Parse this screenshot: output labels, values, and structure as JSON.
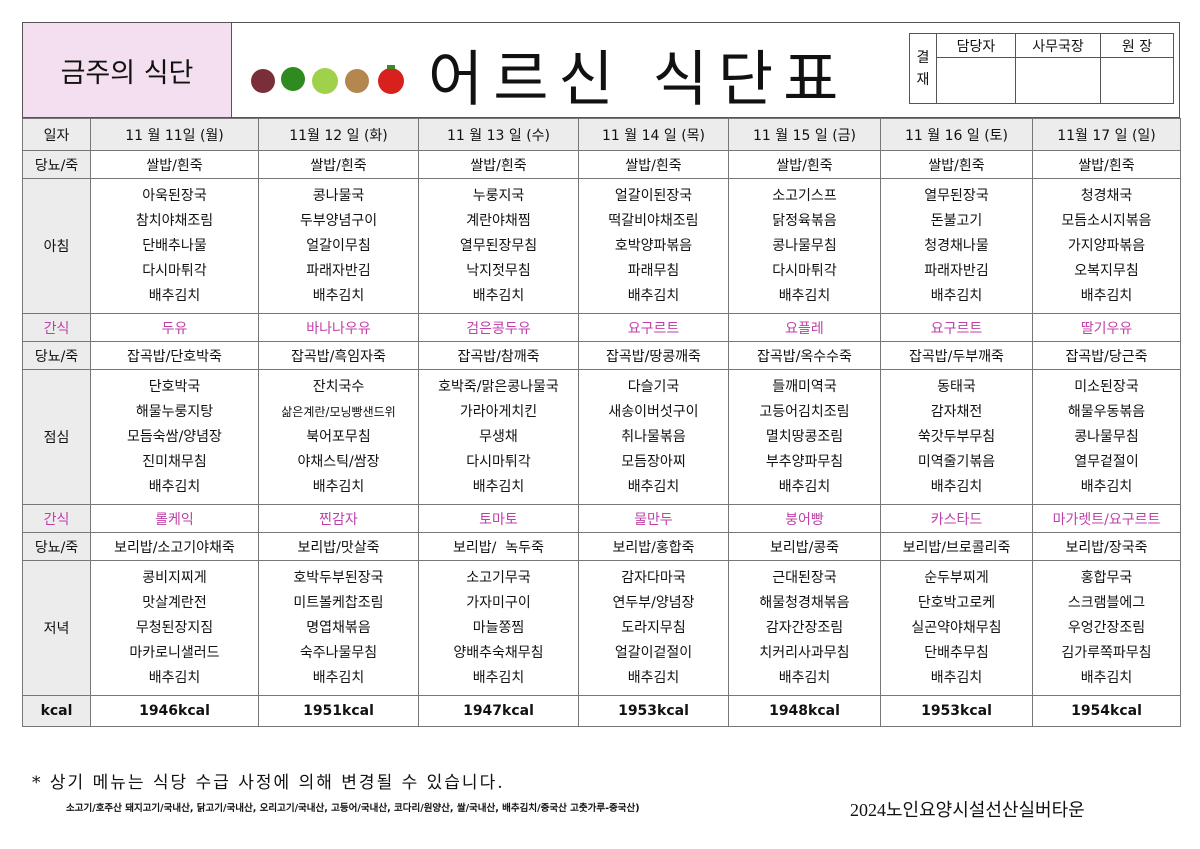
{
  "header": {
    "left_title": "금주의 식단",
    "title": "어르신 식단표",
    "approval": {
      "label_lines": [
        "결",
        "재"
      ],
      "roles": [
        "담당자",
        "사무국장",
        "원 장"
      ]
    }
  },
  "table": {
    "corner": "일자",
    "columns": [
      "11 월 11일 (월)",
      "11월 12 일 (화)",
      "11 월 13 일 (수)",
      "11 월 14 일 (목)",
      "11 월 15 일 (금)",
      "11 월 16 일 (토)",
      "11월 17 일 (일)"
    ],
    "rows": [
      {
        "label": "당뇨/죽",
        "cells": [
          "쌀밥/흰죽",
          "쌀밥/흰죽",
          "쌀밥/흰죽",
          "쌀밥/흰죽",
          "쌀밥/흰죽",
          "쌀밥/흰죽",
          "쌀밥/흰죽"
        ]
      },
      {
        "label": "아침",
        "cells": [
          [
            "아욱된장국",
            "참치야채조림",
            "단배추나물",
            "다시마튀각",
            "배추김치"
          ],
          [
            "콩나물국",
            "두부양념구이",
            "얼갈이무침",
            "파래자반김",
            "배추김치"
          ],
          [
            "누룽지국",
            "계란야채찜",
            "열무된장무침",
            "낙지젓무침",
            "배추김치"
          ],
          [
            "얼갈이된장국",
            "떡갈비야채조림",
            "호박양파볶음",
            "파래무침",
            "배추김치"
          ],
          [
            "소고기스프",
            "닭정육볶음",
            "콩나물무침",
            "다시마튀각",
            "배추김치"
          ],
          [
            "열무된장국",
            "돈불고기",
            "청경채나물",
            "파래자반김",
            "배추김치"
          ],
          [
            "청경채국",
            "모듬소시지볶음",
            "가지양파볶음",
            "오복지무침",
            "배추김치"
          ]
        ]
      },
      {
        "label": "간식",
        "cells": [
          "두유",
          "바나나우유",
          "검은콩두유",
          "요구르트",
          "요플레",
          "요구르트",
          "딸기우유"
        ]
      },
      {
        "label": "당뇨/죽",
        "cells": [
          "잡곡밥/단호박죽",
          "잡곡밥/흑임자죽",
          "잡곡밥/참깨죽",
          "잡곡밥/땅콩깨죽",
          "잡곡밥/옥수수죽",
          "잡곡밥/두부깨죽",
          "잡곡밥/당근죽"
        ]
      },
      {
        "label": "점심",
        "cells": [
          [
            "단호박국",
            "해물누룽지탕",
            "모듬숙쌈/양념장",
            "진미채무침",
            "배추김치"
          ],
          [
            "잔치국수",
            "삶은계란/모닝빵샌드위",
            "북어포무침",
            "야채스틱/쌈장",
            "배추김치"
          ],
          [
            "호박죽/맑은콩나물국",
            "가라아게치킨",
            "무생채",
            "다시마튀각",
            "배추김치"
          ],
          [
            "다슬기국",
            "새송이버섯구이",
            "취나물볶음",
            "모듬장아찌",
            "배추김치"
          ],
          [
            "들깨미역국",
            "고등어김치조림",
            "멸치땅콩조림",
            "부추양파무침",
            "배추김치"
          ],
          [
            "동태국",
            "감자채전",
            "쑥갓두부무침",
            "미역줄기볶음",
            "배추김치"
          ],
          [
            "미소된장국",
            "해물우동볶음",
            "콩나물무침",
            "열무겉절이",
            "배추김치"
          ]
        ]
      },
      {
        "label": "간식",
        "cells": [
          "롤케익",
          "찐감자",
          "토마토",
          "물만두",
          "붕어빵",
          "카스타드",
          "마가렛트/요구르트"
        ]
      },
      {
        "label": "당뇨/죽",
        "cells": [
          "보리밥/소고기야채죽",
          "보리밥/맛살죽",
          "보리밥/  녹두죽",
          "보리밥/홍합죽",
          "보리밥/콩죽",
          "보리밥/브로콜리죽",
          "보리밥/장국죽"
        ]
      },
      {
        "label": "저녁",
        "cells": [
          [
            "콩비지찌게",
            "맛살계란전",
            "무청된장지짐",
            "마카로니샐러드",
            "배추김치"
          ],
          [
            "호박두부된장국",
            "미트볼케찹조림",
            "명엽채볶음",
            "숙주나물무침",
            "배추김치"
          ],
          [
            "소고기무국",
            "가자미구이",
            "마늘쫑찜",
            "양배추숙채무침",
            "배추김치"
          ],
          [
            "감자다마국",
            "연두부/양념장",
            "도라지무침",
            "얼갈이겉절이",
            "배추김치"
          ],
          [
            "근대된장국",
            "해물청경채볶음",
            "감자간장조림",
            "치커리사과무침",
            "배추김치"
          ],
          [
            "순두부찌게",
            "단호박고로케",
            "실곤약야채무침",
            "단배추무침",
            "배추김치"
          ],
          [
            "홍합무국",
            "스크램블에그",
            "우엉간장조림",
            "김가루쪽파무침",
            "배추김치"
          ]
        ]
      },
      {
        "label": "kcal",
        "cells": [
          "1946kcal",
          "1951kcal",
          "1947kcal",
          "1953kcal",
          "1948kcal",
          "1953kcal",
          "1954kcal"
        ]
      }
    ]
  },
  "footer": {
    "notice": "* 상기 메뉴는 식당 수급 사정에 의해 변경될 수 있습니다.",
    "origin": "소고기/호주산 돼지고기/국내산, 닭고기/국내산, 오리고기/국내산, 고등어/국내산, 코다리/원양산, 쌀/국내산, 배추김치/중국산  고춧가루-중국산)",
    "org": "2024노인요양시설선산실버타운"
  }
}
